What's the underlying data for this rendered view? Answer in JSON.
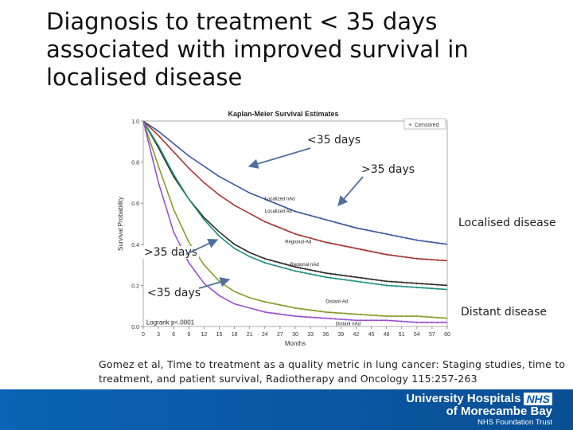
{
  "slide": {
    "title": "Diagnosis to treatment < 35 days associated with improved survival in localised disease",
    "citation": "Gomez et al, Time to treatment as a quality metric in lung cancer: Staging studies, time to treatment, and patient survival, Radiotherapy and Oncology 115:257-263"
  },
  "callouts": {
    "lt35_top": "<35 days",
    "gt35_top": ">35 days",
    "localised": "Localised disease",
    "gt35_bottom": ">35 days",
    "lt35_bottom": "<35 days",
    "distant": "Distant disease"
  },
  "footer": {
    "line1": "University Hospitals",
    "nhs": "NHS",
    "line2": "of Morecambe Bay",
    "line3": "NHS Foundation Trust"
  },
  "colors": {
    "localized_nad": "#3a55a0",
    "localized_ad": "#a63530",
    "regional_ad": "#2e2a24",
    "regional_nad": "#1f8f83",
    "distant_ad": "#8a9a2a",
    "distant_nad": "#9b4fcf",
    "footer": "#0a5aa8"
  },
  "chart_data": {
    "type": "line",
    "title": "Kaplan-Meier Survival Estimates",
    "xlabel": "Months",
    "ylabel": "Survival Probability",
    "xlim": [
      0,
      60
    ],
    "ylim": [
      0,
      1.0
    ],
    "x_ticks": [
      "0",
      "3",
      "6",
      "9",
      "12",
      "15",
      "18",
      "21",
      "24",
      "27",
      "30",
      "33",
      "36",
      "39",
      "42",
      "45",
      "48",
      "51",
      "54",
      "57",
      "60"
    ],
    "y_ticks": [
      "0.0",
      "0.2",
      "0.4",
      "0.6",
      "0.8",
      "1.0"
    ],
    "legend": {
      "label": "Censored",
      "symbol": "+",
      "placement": "top-right"
    },
    "annotation": "Logrank p<.0001",
    "x": [
      0,
      3,
      6,
      9,
      12,
      15,
      18,
      21,
      24,
      30,
      36,
      42,
      48,
      54,
      60
    ],
    "series": [
      {
        "name": "Localized nAd",
        "color_key": "localized_nad",
        "values": [
          1.0,
          0.95,
          0.89,
          0.83,
          0.78,
          0.73,
          0.69,
          0.65,
          0.62,
          0.56,
          0.52,
          0.48,
          0.45,
          0.42,
          0.4
        ]
      },
      {
        "name": "Localized Ad",
        "color_key": "localized_ad",
        "values": [
          1.0,
          0.93,
          0.85,
          0.77,
          0.7,
          0.64,
          0.59,
          0.55,
          0.51,
          0.45,
          0.41,
          0.38,
          0.35,
          0.33,
          0.32
        ]
      },
      {
        "name": "Regional-Ad",
        "color_key": "regional_ad",
        "values": [
          1.0,
          0.87,
          0.73,
          0.62,
          0.53,
          0.46,
          0.4,
          0.36,
          0.33,
          0.29,
          0.26,
          0.24,
          0.22,
          0.21,
          0.2
        ]
      },
      {
        "name": "Regional nAd",
        "color_key": "regional_nad",
        "values": [
          1.0,
          0.88,
          0.74,
          0.62,
          0.52,
          0.44,
          0.38,
          0.34,
          0.31,
          0.27,
          0.24,
          0.22,
          0.2,
          0.19,
          0.18
        ]
      },
      {
        "name": "Distant-Ad",
        "color_key": "distant_ad",
        "values": [
          1.0,
          0.78,
          0.57,
          0.41,
          0.3,
          0.22,
          0.17,
          0.14,
          0.12,
          0.09,
          0.07,
          0.06,
          0.05,
          0.05,
          0.04
        ]
      },
      {
        "name": "Distant nAd",
        "color_key": "distant_nad",
        "values": [
          1.0,
          0.7,
          0.46,
          0.31,
          0.21,
          0.15,
          0.11,
          0.09,
          0.07,
          0.05,
          0.04,
          0.03,
          0.03,
          0.02,
          0.02
        ]
      }
    ]
  }
}
